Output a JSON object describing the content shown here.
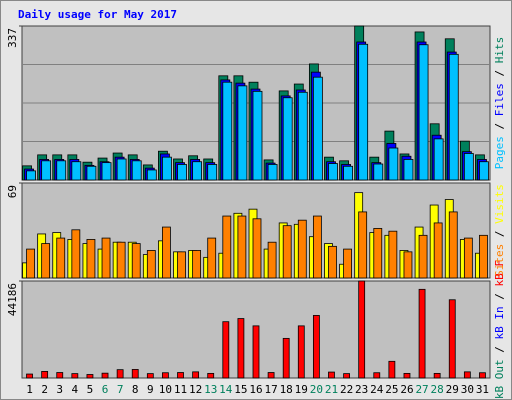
{
  "chart_data": [
    {
      "type": "bar",
      "title": "Daily usage for May 2017",
      "ylim": [
        0,
        337
      ],
      "yticks": [
        337
      ],
      "legend_separator": " / ",
      "series": [
        {
          "name": "Hits",
          "color": "#00805c",
          "values": [
            31,
            55,
            55,
            55,
            39,
            48,
            59,
            55,
            33,
            63,
            46,
            53,
            46,
            228,
            228,
            214,
            44,
            195,
            210,
            254,
            50,
            42,
            337,
            50,
            107,
            57,
            324,
            123,
            309,
            85,
            55
          ]
        },
        {
          "name": "Files",
          "color": "#0000ff",
          "values": [
            24,
            45,
            45,
            45,
            32,
            40,
            50,
            45,
            26,
            57,
            38,
            45,
            38,
            219,
            212,
            199,
            37,
            184,
            197,
            236,
            40,
            34,
            302,
            38,
            80,
            52,
            302,
            98,
            280,
            62,
            45
          ]
        },
        {
          "name": "Pages",
          "color": "#00c0ff",
          "values": [
            20,
            42,
            42,
            40,
            30,
            38,
            46,
            42,
            22,
            50,
            34,
            40,
            34,
            214,
            206,
            194,
            34,
            180,
            192,
            225,
            36,
            30,
            297,
            35,
            70,
            45,
            296,
            90,
            275,
            58,
            40
          ]
        }
      ]
    },
    {
      "type": "bar",
      "ylim": [
        0,
        69
      ],
      "yticks": [
        69
      ],
      "legend_separator": " / ",
      "series": [
        {
          "name": "Visits",
          "color": "#ffff00",
          "values": [
            11,
            32,
            33,
            28,
            25,
            21,
            26,
            26,
            17,
            27,
            19,
            20,
            15,
            18,
            47,
            50,
            21,
            40,
            39,
            30,
            25,
            10,
            62,
            33,
            31,
            20,
            37,
            53,
            57,
            28,
            18
          ]
        },
        {
          "name": "Sites",
          "color": "#ff8000",
          "values": [
            21,
            25,
            29,
            35,
            28,
            29,
            26,
            25,
            20,
            37,
            19,
            20,
            29,
            45,
            45,
            43,
            26,
            38,
            42,
            45,
            23,
            21,
            48,
            36,
            34,
            19,
            31,
            40,
            48,
            29,
            31
          ]
        }
      ]
    },
    {
      "type": "bar",
      "ylim": [
        0,
        44186
      ],
      "yticks": [
        44186
      ],
      "legend_separator": " / ",
      "categories": [
        "1",
        "2",
        "3",
        "4",
        "5",
        "6",
        "7",
        "8",
        "9",
        "10",
        "11",
        "12",
        "13",
        "14",
        "15",
        "16",
        "17",
        "18",
        "19",
        "20",
        "21",
        "22",
        "23",
        "24",
        "25",
        "26",
        "27",
        "28",
        "29",
        "30",
        "31"
      ],
      "category_colors": [
        "#000000",
        "#000000",
        "#000000",
        "#000000",
        "#000000",
        "#00805c",
        "#00805c",
        "#000000",
        "#000000",
        "#000000",
        "#000000",
        "#000000",
        "#00805c",
        "#00805c",
        "#000000",
        "#000000",
        "#000000",
        "#000000",
        "#000000",
        "#00805c",
        "#00805c",
        "#000000",
        "#000000",
        "#000000",
        "#000000",
        "#000000",
        "#00805c",
        "#00805c",
        "#000000",
        "#000000",
        "#000000"
      ],
      "series": [
        {
          "name": "kB F",
          "color": "#ff0000",
          "values": [
            1800,
            3000,
            2500,
            2000,
            1600,
            2200,
            3800,
            3900,
            2000,
            2400,
            2500,
            2800,
            2100,
            25650,
            27080,
            23750,
            2500,
            18050,
            23750,
            28500,
            2700,
            2000,
            44186,
            2400,
            7600,
            2100,
            40390,
            2100,
            35640,
            2800,
            2400
          ]
        }
      ],
      "legend_only": [
        {
          "name": "kB In",
          "color": "#0000ff"
        },
        {
          "name": "kB Out",
          "color": "#00805c"
        }
      ]
    }
  ]
}
